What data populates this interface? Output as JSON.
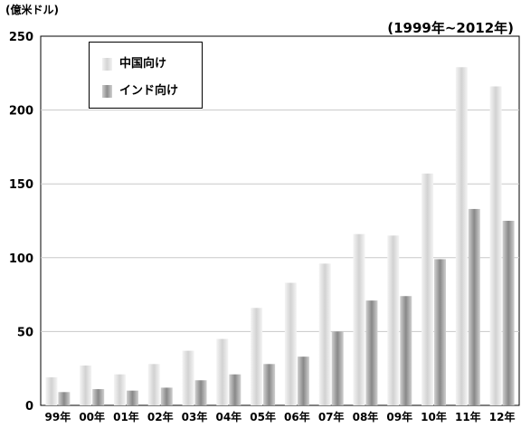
{
  "chart_data": {
    "type": "bar",
    "unit_label": "(億米ドル)",
    "range_label": "(1999年~2012年)",
    "categories": [
      "99年",
      "00年",
      "01年",
      "02年",
      "03年",
      "04年",
      "05年",
      "06年",
      "07年",
      "08年",
      "09年",
      "10年",
      "11年",
      "12年"
    ],
    "series": [
      {
        "name": "中国向け",
        "values": [
          19,
          27,
          21,
          28,
          37,
          45,
          66,
          83,
          96,
          116,
          115,
          157,
          229,
          216
        ],
        "color": "#e0e0e0"
      },
      {
        "name": "インド向け",
        "values": [
          9,
          11,
          10,
          12,
          17,
          21,
          28,
          33,
          50,
          71,
          74,
          99,
          133,
          125
        ],
        "color": "#a8a8a8"
      }
    ],
    "yticks": [
      0,
      50,
      100,
      150,
      200,
      250
    ],
    "ylim": [
      0,
      250
    ],
    "grid": true,
    "legend_position": "top-left"
  }
}
